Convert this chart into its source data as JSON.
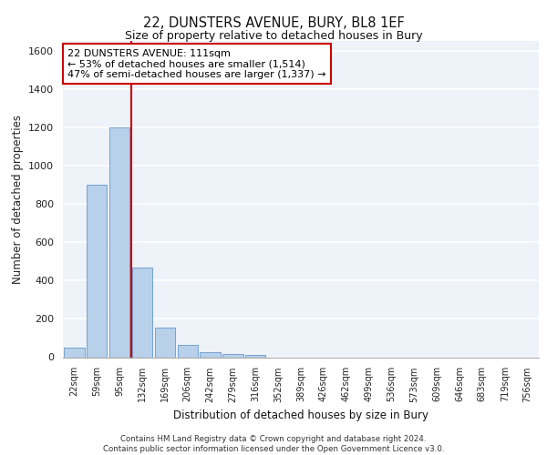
{
  "title1": "22, DUNSTERS AVENUE, BURY, BL8 1EF",
  "title2": "Size of property relative to detached houses in Bury",
  "xlabel": "Distribution of detached houses by size in Bury",
  "ylabel": "Number of detached properties",
  "bin_labels": [
    "22sqm",
    "59sqm",
    "95sqm",
    "132sqm",
    "169sqm",
    "206sqm",
    "242sqm",
    "279sqm",
    "316sqm",
    "352sqm",
    "389sqm",
    "426sqm",
    "462sqm",
    "499sqm",
    "536sqm",
    "573sqm",
    "609sqm",
    "646sqm",
    "683sqm",
    "719sqm",
    "756sqm"
  ],
  "bar_values": [
    50,
    900,
    1200,
    470,
    155,
    65,
    28,
    18,
    12,
    0,
    0,
    0,
    0,
    0,
    0,
    0,
    0,
    0,
    0,
    0,
    0
  ],
  "bar_color": "#b8d0ea",
  "bar_edge_color": "#6699cc",
  "background_color": "#eef2f9",
  "grid_color": "#ffffff",
  "vline_x": 2.5,
  "vline_color": "#cc0000",
  "annotation_text": "22 DUNSTERS AVENUE: 111sqm\n← 53% of detached houses are smaller (1,514)\n47% of semi-detached houses are larger (1,337) →",
  "annotation_box_color": "#ffffff",
  "annotation_box_edge": "#cc0000",
  "ylim": [
    0,
    1650
  ],
  "yticks": [
    0,
    200,
    400,
    600,
    800,
    1000,
    1200,
    1400,
    1600
  ],
  "footer1": "Contains HM Land Registry data © Crown copyright and database right 2024.",
  "footer2": "Contains public sector information licensed under the Open Government Licence v3.0."
}
